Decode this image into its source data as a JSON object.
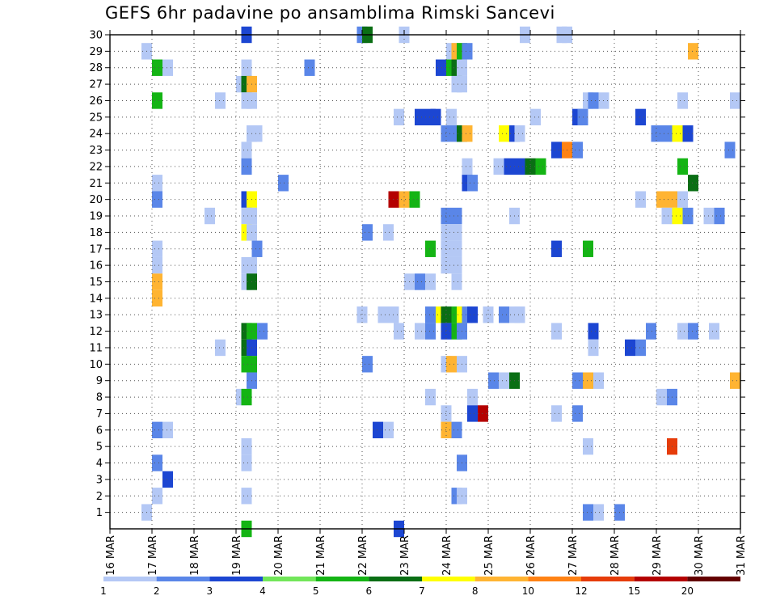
{
  "chart_data": {
    "type": "heatmap",
    "title": "GEFS 6hr padavine po ansamblima Rimski Sancevi",
    "x_tick_labels": [
      "16 MAR",
      "17 MAR",
      "18 MAR",
      "19 MAR",
      "20 MAR",
      "21 MAR",
      "22 MAR",
      "23 MAR",
      "24 MAR",
      "25 MAR",
      "26 MAR",
      "27 MAR",
      "28 MAR",
      "29 MAR",
      "30 MAR",
      "31 MAR"
    ],
    "x_range_days": [
      16,
      31
    ],
    "y_tick_labels": [
      "1",
      "2",
      "3",
      "4",
      "5",
      "6",
      "7",
      "8",
      "9",
      "10",
      "11",
      "12",
      "13",
      "14",
      "15",
      "16",
      "17",
      "18",
      "19",
      "20",
      "21",
      "22",
      "23",
      "24",
      "25",
      "26",
      "27",
      "28",
      "29",
      "30"
    ],
    "y_range": [
      0,
      30
    ],
    "grid": true,
    "legend_position": "bottom",
    "colorbar": {
      "labels": [
        "1",
        "2",
        "3",
        "4",
        "5",
        "6",
        "7",
        "8",
        "10",
        "12",
        "15",
        "20"
      ],
      "colors": [
        "#b4c8f5",
        "#5a86e8",
        "#1c46d2",
        "#72e65a",
        "#14b414",
        "#0a6e14",
        "#ffff00",
        "#ffb432",
        "#ff8214",
        "#e63c0a",
        "#b40000",
        "#640000"
      ]
    },
    "cells_format": "[member, day, precip_mm]",
    "cells": [
      [
        30,
        19.25,
        3
      ],
      [
        30,
        22.0,
        2
      ],
      [
        30,
        22.125,
        6
      ],
      [
        30,
        23.0,
        1
      ],
      [
        30,
        25.875,
        1
      ],
      [
        30,
        26.75,
        1
      ],
      [
        30,
        26.875,
        1
      ],
      [
        29,
        16.875,
        1
      ],
      [
        29,
        24.125,
        1
      ],
      [
        29,
        24.25,
        8
      ],
      [
        29,
        24.375,
        5
      ],
      [
        29,
        24.5,
        2
      ],
      [
        29,
        29.875,
        8
      ],
      [
        28,
        17.125,
        5
      ],
      [
        28,
        17.375,
        1
      ],
      [
        28,
        19.25,
        1
      ],
      [
        28,
        20.75,
        2
      ],
      [
        28,
        23.875,
        3
      ],
      [
        28,
        24.125,
        5
      ],
      [
        28,
        24.25,
        6
      ],
      [
        28,
        24.375,
        1
      ],
      [
        27,
        19.125,
        1
      ],
      [
        27,
        19.25,
        6
      ],
      [
        27,
        19.375,
        8
      ],
      [
        27,
        24.25,
        1
      ],
      [
        27,
        24.375,
        1
      ],
      [
        26,
        17.125,
        5
      ],
      [
        26,
        18.625,
        1
      ],
      [
        26,
        19.25,
        1
      ],
      [
        26,
        19.375,
        1
      ],
      [
        26,
        27.375,
        1
      ],
      [
        26,
        27.5,
        2
      ],
      [
        26,
        27.75,
        1
      ],
      [
        26,
        29.625,
        1
      ],
      [
        26,
        30.875,
        1
      ],
      [
        25,
        22.875,
        1
      ],
      [
        25,
        23.375,
        3
      ],
      [
        25,
        23.625,
        3
      ],
      [
        25,
        23.75,
        3
      ],
      [
        25,
        24.125,
        1
      ],
      [
        25,
        26.125,
        1
      ],
      [
        25,
        27.125,
        3
      ],
      [
        25,
        27.25,
        2
      ],
      [
        25,
        28.625,
        3
      ],
      [
        24,
        19.375,
        1
      ],
      [
        24,
        19.5,
        1
      ],
      [
        24,
        24.0,
        2
      ],
      [
        24,
        24.25,
        2
      ],
      [
        24,
        24.375,
        6
      ],
      [
        24,
        24.5,
        8
      ],
      [
        24,
        25.375,
        7
      ],
      [
        24,
        25.625,
        3
      ],
      [
        24,
        25.75,
        1
      ],
      [
        24,
        29.0,
        2
      ],
      [
        24,
        29.25,
        2
      ],
      [
        24,
        29.5,
        7
      ],
      [
        24,
        29.75,
        3
      ],
      [
        23,
        19.25,
        1
      ],
      [
        23,
        26.625,
        3
      ],
      [
        23,
        26.875,
        10
      ],
      [
        23,
        27.125,
        2
      ],
      [
        23,
        30.75,
        2
      ],
      [
        22,
        19.25,
        2
      ],
      [
        22,
        24.5,
        1
      ],
      [
        22,
        25.25,
        1
      ],
      [
        22,
        25.5,
        3
      ],
      [
        22,
        25.75,
        3
      ],
      [
        22,
        26.0,
        6
      ],
      [
        22,
        26.25,
        5
      ],
      [
        22,
        29.625,
        5
      ],
      [
        21,
        17.125,
        1
      ],
      [
        21,
        20.125,
        2
      ],
      [
        21,
        24.5,
        3
      ],
      [
        21,
        24.625,
        2
      ],
      [
        21,
        29.875,
        6
      ],
      [
        20,
        17.125,
        2
      ],
      [
        20,
        19.25,
        3
      ],
      [
        20,
        19.375,
        7
      ],
      [
        20,
        22.75,
        15
      ],
      [
        20,
        23.0,
        8
      ],
      [
        20,
        23.25,
        5
      ],
      [
        20,
        28.625,
        1
      ],
      [
        20,
        29.125,
        8
      ],
      [
        20,
        29.375,
        8
      ],
      [
        20,
        29.625,
        1
      ],
      [
        19,
        18.375,
        1
      ],
      [
        19,
        19.25,
        1
      ],
      [
        19,
        19.375,
        1
      ],
      [
        19,
        24.0,
        2
      ],
      [
        19,
        24.25,
        2
      ],
      [
        19,
        25.625,
        1
      ],
      [
        19,
        29.25,
        1
      ],
      [
        19,
        29.5,
        7
      ],
      [
        19,
        29.75,
        2
      ],
      [
        19,
        30.25,
        1
      ],
      [
        19,
        30.5,
        2
      ],
      [
        18,
        19.25,
        7
      ],
      [
        18,
        19.375,
        1
      ],
      [
        18,
        22.125,
        2
      ],
      [
        18,
        22.625,
        1
      ],
      [
        18,
        24.0,
        1
      ],
      [
        18,
        24.25,
        1
      ],
      [
        17,
        17.125,
        1
      ],
      [
        17,
        19.5,
        2
      ],
      [
        17,
        23.625,
        5
      ],
      [
        17,
        24.0,
        1
      ],
      [
        17,
        24.25,
        1
      ],
      [
        17,
        26.625,
        3
      ],
      [
        17,
        27.375,
        5
      ],
      [
        16,
        17.125,
        1
      ],
      [
        16,
        19.25,
        1
      ],
      [
        16,
        19.375,
        1
      ],
      [
        16,
        24.0,
        1
      ],
      [
        16,
        24.25,
        1
      ],
      [
        15,
        17.125,
        8
      ],
      [
        15,
        19.25,
        1
      ],
      [
        15,
        19.375,
        6
      ],
      [
        15,
        23.125,
        1
      ],
      [
        15,
        23.375,
        2
      ],
      [
        15,
        23.625,
        1
      ],
      [
        15,
        24.25,
        1
      ],
      [
        14,
        17.125,
        8
      ],
      [
        13,
        22.0,
        1
      ],
      [
        13,
        22.5,
        1
      ],
      [
        13,
        22.75,
        1
      ],
      [
        13,
        23.625,
        2
      ],
      [
        13,
        23.875,
        7
      ],
      [
        13,
        24.0,
        6
      ],
      [
        13,
        24.25,
        5
      ],
      [
        13,
        24.375,
        7
      ],
      [
        13,
        24.5,
        2
      ],
      [
        13,
        24.625,
        3
      ],
      [
        13,
        25.0,
        1
      ],
      [
        13,
        25.375,
        2
      ],
      [
        13,
        25.625,
        1
      ],
      [
        13,
        25.75,
        1
      ],
      [
        12,
        19.25,
        6
      ],
      [
        12,
        19.375,
        5
      ],
      [
        12,
        19.625,
        2
      ],
      [
        12,
        22.875,
        1
      ],
      [
        12,
        23.375,
        1
      ],
      [
        12,
        23.625,
        2
      ],
      [
        12,
        24.0,
        3
      ],
      [
        12,
        24.25,
        5
      ],
      [
        12,
        24.375,
        2
      ],
      [
        12,
        26.625,
        1
      ],
      [
        12,
        27.5,
        3
      ],
      [
        12,
        28.875,
        2
      ],
      [
        12,
        29.625,
        1
      ],
      [
        12,
        29.875,
        2
      ],
      [
        12,
        30.375,
        1
      ],
      [
        11,
        18.625,
        1
      ],
      [
        11,
        19.25,
        6
      ],
      [
        11,
        19.375,
        3
      ],
      [
        11,
        27.5,
        1
      ],
      [
        11,
        28.375,
        3
      ],
      [
        11,
        28.625,
        2
      ],
      [
        10,
        19.25,
        5
      ],
      [
        10,
        19.375,
        5
      ],
      [
        10,
        22.125,
        2
      ],
      [
        10,
        24.0,
        1
      ],
      [
        10,
        24.125,
        8
      ],
      [
        10,
        24.375,
        1
      ],
      [
        9,
        19.375,
        2
      ],
      [
        9,
        25.125,
        2
      ],
      [
        9,
        25.375,
        1
      ],
      [
        9,
        25.625,
        6
      ],
      [
        9,
        27.125,
        2
      ],
      [
        9,
        27.375,
        8
      ],
      [
        9,
        27.625,
        1
      ],
      [
        9,
        30.875,
        8
      ],
      [
        8,
        19.125,
        1
      ],
      [
        8,
        19.25,
        5
      ],
      [
        8,
        23.625,
        1
      ],
      [
        8,
        24.625,
        1
      ],
      [
        8,
        29.125,
        1
      ],
      [
        8,
        29.375,
        2
      ],
      [
        7,
        24.0,
        1
      ],
      [
        7,
        24.625,
        3
      ],
      [
        7,
        24.875,
        15
      ],
      [
        7,
        26.625,
        1
      ],
      [
        7,
        27.125,
        2
      ],
      [
        6,
        17.125,
        2
      ],
      [
        6,
        17.375,
        1
      ],
      [
        6,
        22.375,
        3
      ],
      [
        6,
        22.625,
        1
      ],
      [
        6,
        24.0,
        8
      ],
      [
        6,
        24.25,
        2
      ],
      [
        5,
        19.25,
        1
      ],
      [
        5,
        27.375,
        1
      ],
      [
        5,
        29.375,
        12
      ],
      [
        4,
        17.125,
        2
      ],
      [
        4,
        19.25,
        1
      ],
      [
        4,
        24.375,
        2
      ],
      [
        3,
        17.375,
        3
      ],
      [
        2,
        17.125,
        1
      ],
      [
        2,
        19.25,
        1
      ],
      [
        2,
        24.25,
        2
      ],
      [
        2,
        24.375,
        1
      ],
      [
        1,
        16.875,
        1
      ],
      [
        1,
        27.375,
        2
      ],
      [
        1,
        27.625,
        1
      ],
      [
        1,
        28.125,
        2
      ],
      [
        0,
        19.25,
        5
      ],
      [
        0,
        22.875,
        3
      ]
    ]
  }
}
